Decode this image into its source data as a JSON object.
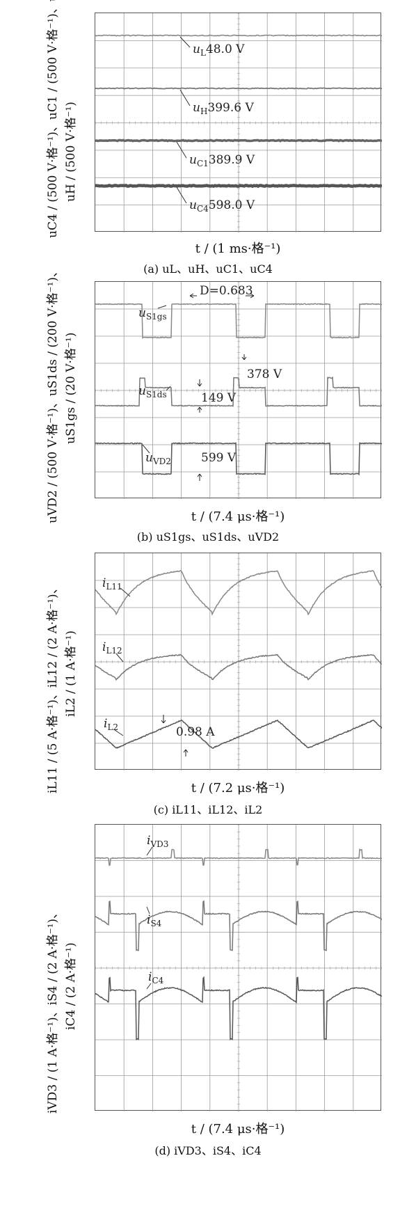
{
  "chart_data": [
    {
      "type": "line",
      "panel": "a",
      "xlabel": "t / (1 ms·格⁻¹)",
      "ylabel_line1": "uC4 / (500 V·格⁻¹)、uC1 / (500 V·格⁻¹)、uL / (50 V·格⁻¹)",
      "ylabel_line2": "uH / (500 V·格⁻¹)",
      "caption": "(a)  uL、uH、uC1、uC4",
      "series": [
        {
          "name": "uL",
          "label": "uL48.0 V",
          "value": 48.0,
          "unit": "V",
          "color": "#888888"
        },
        {
          "name": "uH",
          "label": "uH399.6 V",
          "value": 399.6,
          "unit": "V",
          "color": "#777777"
        },
        {
          "name": "uC1",
          "label": "uC1389.9 V",
          "value": 389.9,
          "unit": "V",
          "color": "#666666"
        },
        {
          "name": "uC4",
          "label": "uC4598.0 V",
          "value": 598.0,
          "unit": "V",
          "color": "#555555"
        }
      ],
      "grid": true
    },
    {
      "type": "line",
      "panel": "b",
      "xlabel": "t / (7.4 μs·格⁻¹)",
      "ylabel_line1": "uVD2 / (500 V·格⁻¹)、uS1ds / (200 V·格⁻¹)、",
      "ylabel_line2": "uS1gs / (20 V·格⁻¹)",
      "caption": "(b)  uS1gs、uS1ds、uVD2",
      "annotations": {
        "duty": "D=0.683",
        "v378": "378 V",
        "v149": "149 V",
        "v599": "599 V"
      },
      "series": [
        {
          "name": "uS1gs",
          "color": "#888888"
        },
        {
          "name": "uS1ds",
          "color": "#777777"
        },
        {
          "name": "uVD2",
          "color": "#555555"
        }
      ],
      "grid": true
    },
    {
      "type": "line",
      "panel": "c",
      "xlabel": "t / (7.2 μs·格⁻¹)",
      "ylabel_line1": "iL11 / (5 A·格⁻¹)、iL12 / (2 A·格⁻¹)、",
      "ylabel_line2": "iL2 / (1 A·格⁻¹)",
      "caption": "(c)  iL11、iL12、iL2",
      "annotations": {
        "ripple": "0.98 A"
      },
      "series": [
        {
          "name": "iL11",
          "color": "#888888"
        },
        {
          "name": "iL12",
          "color": "#777777"
        },
        {
          "name": "iL2",
          "color": "#555555"
        }
      ],
      "grid": true
    },
    {
      "type": "line",
      "panel": "d",
      "xlabel": "t / (7.4 μs·格⁻¹)",
      "ylabel_line1": "iVD3 / (1 A·格⁻¹)、iS4 / (2 A·格⁻¹)、",
      "ylabel_line2": "iC4 / (2 A·格⁻¹)",
      "caption": "(d)  iVD3、iS4、iC4",
      "series": [
        {
          "name": "iVD3",
          "color": "#888888"
        },
        {
          "name": "iS4",
          "color": "#777777"
        },
        {
          "name": "iC4",
          "color": "#555555"
        }
      ],
      "grid": true
    }
  ]
}
